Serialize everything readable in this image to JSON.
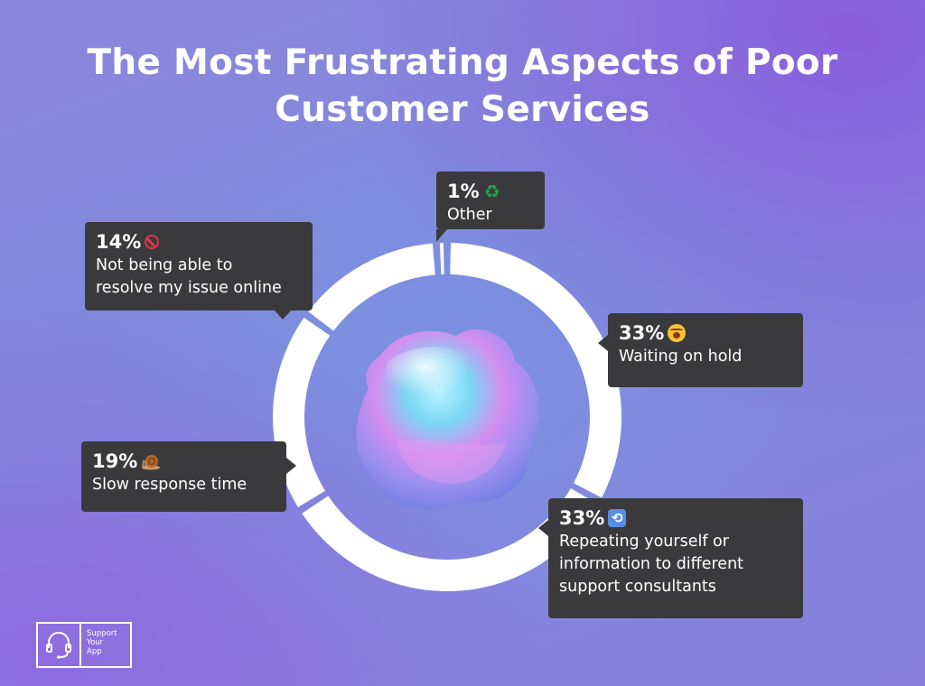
{
  "title": "The Most Frustrating Aspects of Poor Customer Services",
  "chart_data": {
    "type": "pie",
    "variant": "donut",
    "start": "top",
    "direction": "clockwise",
    "ring_color": "#ffffff",
    "slices": [
      {
        "label": "Waiting on hold",
        "value": 33,
        "value_label": "33%",
        "icon": "yawning-face-icon"
      },
      {
        "label": "Repeating yourself or\ninformation to different\nsupport consultants",
        "value": 33,
        "value_label": "33%",
        "icon": "repeat-icon"
      },
      {
        "label": "Slow response time",
        "value": 19,
        "value_label": "19%",
        "icon": "snail-icon"
      },
      {
        "label": "Not being able to\nresolve my issue online",
        "value": 14,
        "value_label": "14%",
        "icon": "no-entry-icon"
      },
      {
        "label": "Other",
        "value": 1,
        "value_label": "1%",
        "icon": "recycle-icon"
      }
    ]
  },
  "emoji": {
    "recycle": "♻",
    "repeat": "⟲"
  },
  "logo": {
    "line1": "Support",
    "line2": "Your",
    "line3": "App"
  }
}
